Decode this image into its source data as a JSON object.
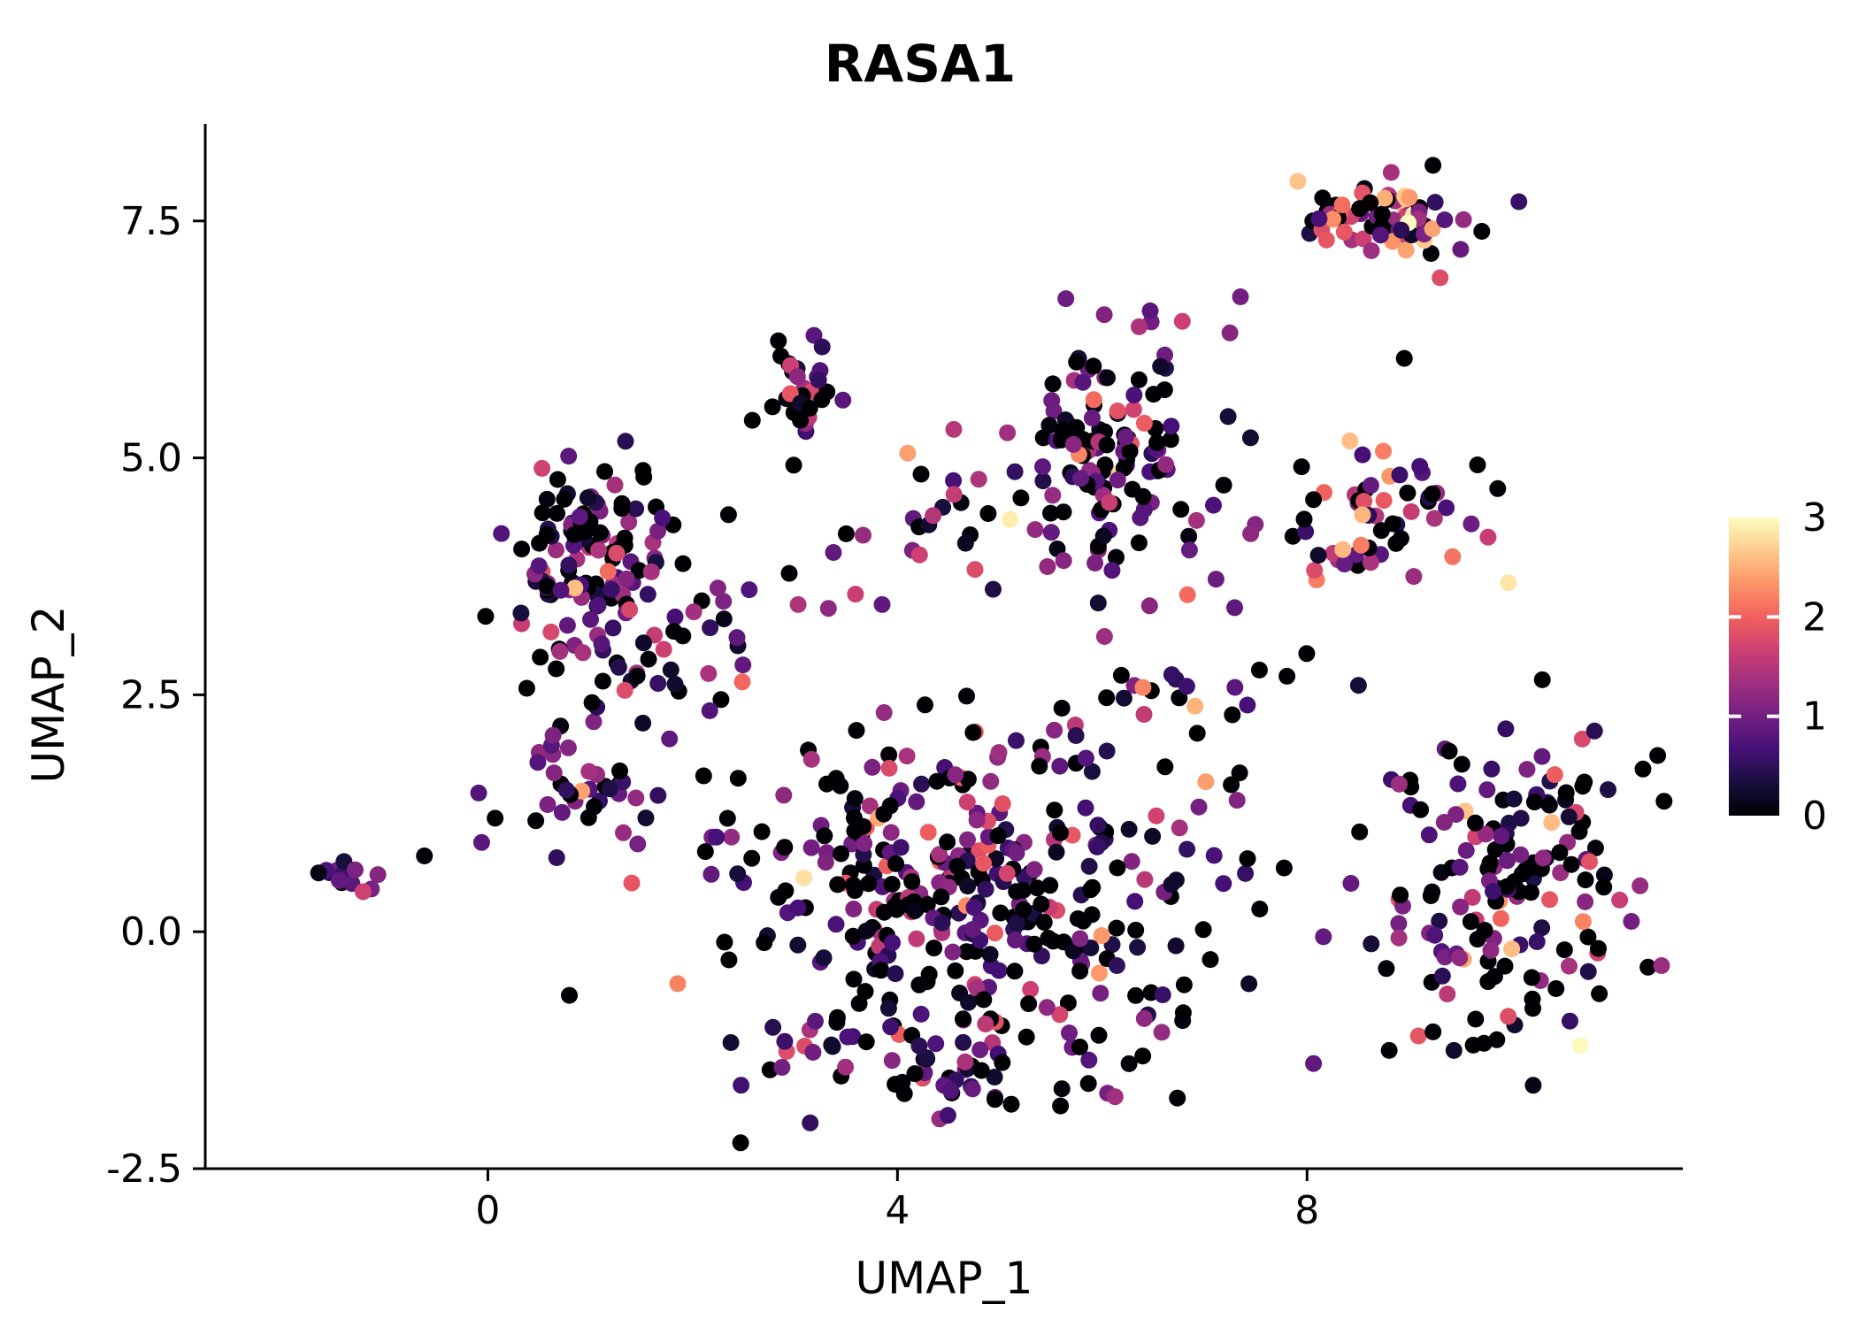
{
  "chart_data": {
    "type": "scatter",
    "title": "RASA1",
    "xlabel": "UMAP_1",
    "ylabel": "UMAP_2",
    "x_ticks": [
      0,
      4,
      8
    ],
    "x_tick_labels": [
      "0",
      "4",
      "8"
    ],
    "y_ticks": [
      -2.5,
      0.0,
      2.5,
      5.0,
      7.5
    ],
    "y_tick_labels": [
      "-2.5",
      "0.0",
      "2.5",
      "5.0",
      "7.5"
    ],
    "x_range": [
      -2.76,
      11.67
    ],
    "y_range": [
      -2.5,
      8.45
    ],
    "grid": false,
    "axis_color": "#000000",
    "background_color": "#FFFFFF",
    "point_radius": 9.5,
    "seed": 20240512,
    "legend": {
      "position": "right",
      "orientation": "vertical",
      "value_min": 0,
      "value_max": 3,
      "ticks": [
        0,
        1,
        2,
        3
      ],
      "tick_labels": [
        "0",
        "1",
        "2",
        "3"
      ],
      "tick_mark_color": "#FFFFFF"
    },
    "colormap": {
      "name": "magma",
      "anchors": [
        [
          0.0,
          "#000004"
        ],
        [
          0.111,
          "#180F3E"
        ],
        [
          0.222,
          "#451077"
        ],
        [
          0.333,
          "#721F81"
        ],
        [
          0.444,
          "#9F2F7F"
        ],
        [
          0.556,
          "#CD4071"
        ],
        [
          0.667,
          "#F1605D"
        ],
        [
          0.778,
          "#FD9567"
        ],
        [
          0.889,
          "#FECA8D"
        ],
        [
          1.0,
          "#FCFDBF"
        ]
      ]
    },
    "clusters": [
      {
        "name": "far-left-islet",
        "cx": -1.4,
        "cy": 0.62,
        "sx": 0.18,
        "sy": 0.1,
        "n": 15,
        "p0": 0.15,
        "mu": 0.8,
        "sigma": 0.35,
        "phigh": 0.0
      },
      {
        "name": "upper-left-blob",
        "cx": 1.05,
        "cy": 3.95,
        "sx": 0.42,
        "sy": 0.5,
        "n": 115,
        "p0": 0.35,
        "mu": 0.9,
        "sigma": 0.6,
        "phigh": 0.01
      },
      {
        "name": "upper-left-lower",
        "cx": 1.35,
        "cy": 2.7,
        "sx": 0.45,
        "sy": 0.35,
        "n": 28,
        "p0": 0.3,
        "mu": 0.9,
        "sigma": 0.55,
        "phigh": 0.01
      },
      {
        "name": "left-arm",
        "cx": 0.95,
        "cy": 1.45,
        "sx": 0.4,
        "sy": 0.3,
        "n": 36,
        "p0": 0.3,
        "mu": 0.9,
        "sigma": 0.5,
        "phigh": 0.01
      },
      {
        "name": "top-mid-small",
        "cx": 3.0,
        "cy": 5.7,
        "sx": 0.28,
        "sy": 0.3,
        "n": 30,
        "p0": 0.3,
        "mu": 1.0,
        "sigma": 0.6,
        "phigh": 0.02
      },
      {
        "name": "top-center-blob",
        "cx": 6.15,
        "cy": 5.2,
        "sx": 0.5,
        "sy": 0.6,
        "n": 125,
        "p0": 0.3,
        "mu": 0.9,
        "sigma": 0.55,
        "phigh": 0.01
      },
      {
        "name": "mid-band",
        "cx": 4.3,
        "cy": 4.35,
        "sx": 0.9,
        "sy": 0.25,
        "n": 26,
        "p0": 0.3,
        "mu": 1.1,
        "sigma": 0.7,
        "phigh": 0.02
      },
      {
        "name": "top-right-strip",
        "cx": 8.75,
        "cy": 7.5,
        "sx": 0.45,
        "sy": 0.22,
        "n": 70,
        "p0": 0.25,
        "mu": 1.5,
        "sigma": 0.8,
        "phigh": 0.04
      },
      {
        "name": "right-mid-blob",
        "cx": 8.75,
        "cy": 4.4,
        "sx": 0.4,
        "sy": 0.35,
        "n": 55,
        "p0": 0.3,
        "mu": 1.2,
        "sigma": 0.7,
        "phigh": 0.03
      },
      {
        "name": "bottom-right-blob",
        "cx": 9.9,
        "cy": 0.55,
        "sx": 0.6,
        "sy": 0.85,
        "n": 165,
        "p0": 0.35,
        "mu": 1.0,
        "sigma": 0.65,
        "phigh": 0.02
      },
      {
        "name": "central-cloud",
        "cx": 4.7,
        "cy": 0.45,
        "sx": 1.25,
        "sy": 0.95,
        "n": 370,
        "p0": 0.4,
        "mu": 0.85,
        "sigma": 0.6,
        "phigh": 0.01
      },
      {
        "name": "central-tail",
        "cx": 4.4,
        "cy": -1.45,
        "sx": 0.75,
        "sy": 0.35,
        "n": 55,
        "p0": 0.35,
        "mu": 1.0,
        "sigma": 0.6,
        "phigh": 0.02
      },
      {
        "name": "sparse-right-gap",
        "cx": 6.9,
        "cy": 2.9,
        "sx": 0.7,
        "sy": 0.5,
        "n": 28,
        "p0": 0.35,
        "mu": 1.0,
        "sigma": 0.6,
        "phigh": 0.01
      },
      {
        "name": "sparse-left-gap",
        "cx": 2.5,
        "cy": 3.3,
        "sx": 0.5,
        "sy": 0.4,
        "n": 18,
        "p0": 0.3,
        "mu": 1.0,
        "sigma": 0.6,
        "phigh": 0.01
      }
    ],
    "extra_points": [
      [
        -0.62,
        0.8,
        0.0
      ],
      [
        7.35,
        6.7,
        1.0
      ],
      [
        8.95,
        6.05,
        0.0
      ],
      [
        4.1,
        5.05,
        2.4
      ],
      [
        4.55,
        5.3,
        1.5
      ],
      [
        2.35,
        4.4,
        0.0
      ],
      [
        5.1,
        4.35,
        2.9
      ],
      [
        7.45,
        4.2,
        1.2
      ],
      [
        9.3,
        6.9,
        1.8
      ],
      [
        9.5,
        7.2,
        0.9
      ]
    ]
  }
}
